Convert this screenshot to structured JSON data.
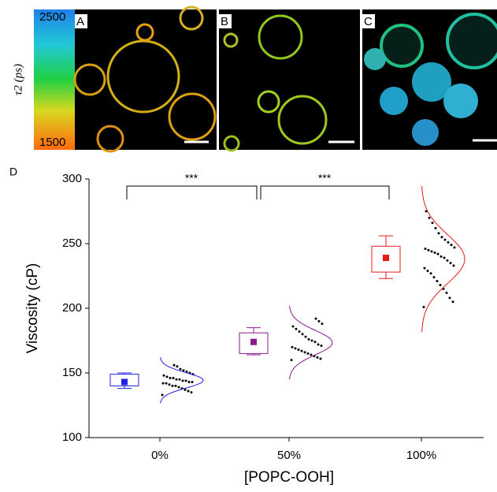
{
  "colorbar": {
    "label": "τ2 (ps)",
    "max_label": "2500",
    "min_label": "1500"
  },
  "panels": [
    "A",
    "B",
    "C"
  ],
  "chart_data": {
    "type": "box",
    "panel_label": "D",
    "ylabel": "Viscosity (cP)",
    "xlabel": "[POPC-OOH]",
    "categories": [
      "0%",
      "50%",
      "100%"
    ],
    "ylim": [
      100,
      300
    ],
    "yticks": [
      100,
      150,
      200,
      250,
      300
    ],
    "boxes": [
      {
        "color": "#1f1fe0",
        "whisker_low": 138,
        "q1": 140,
        "q3": 149,
        "whisker_high": 150,
        "mean": 143
      },
      {
        "color": "#8b1a8b",
        "whisker_low": 164,
        "q1": 165,
        "q3": 181,
        "whisker_high": 185,
        "mean": 174
      },
      {
        "color": "#e81919",
        "whisker_low": 223,
        "q1": 228,
        "q3": 248,
        "whisker_high": 256,
        "mean": 239
      }
    ],
    "points": [
      [
        133,
        135,
        136,
        137,
        138,
        139,
        140,
        140,
        141,
        142,
        142,
        143,
        143,
        144,
        144,
        145,
        145,
        146,
        146,
        147,
        148,
        149,
        150,
        151,
        152,
        153,
        155,
        156
      ],
      [
        160,
        161,
        162,
        163,
        164,
        165,
        166,
        167,
        168,
        169,
        170,
        171,
        172,
        174,
        175,
        176,
        178,
        180,
        182,
        184,
        186,
        188,
        190,
        192
      ],
      [
        201,
        205,
        208,
        212,
        215,
        218,
        221,
        224,
        227,
        229,
        231,
        233,
        235,
        237,
        239,
        240,
        242,
        243,
        244,
        245,
        246,
        247,
        249,
        251,
        253,
        255,
        258,
        262,
        266,
        270,
        275
      ]
    ],
    "annotations": [
      "***",
      "***"
    ]
  }
}
